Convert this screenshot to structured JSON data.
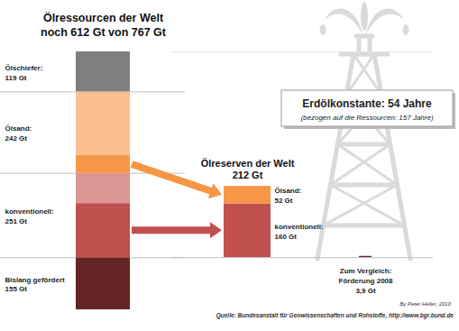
{
  "chart_data": [
    {
      "type": "bar",
      "stacked": true,
      "data_labels": true,
      "tick_labels": false,
      "title": "Ölressourcen der Welt",
      "subtitle": "noch 612 Gt von 767 Gt",
      "categories": [
        "Bislang gefördert",
        "konventionell:",
        "Ölsand:",
        "Ölschiefer:"
      ],
      "values": [
        155,
        251,
        242,
        119
      ],
      "value_labels": [
        "155 Gt",
        "251 Gt",
        "242 Gt",
        "119 Gt"
      ],
      "colors": [
        "#632523",
        "#d99694",
        "#fac090",
        "#7f7f7f"
      ],
      "ylim": [
        0,
        767
      ]
    },
    {
      "type": "bar",
      "stacked": true,
      "data_labels": true,
      "tick_labels": false,
      "title": "Ölreserven der Welt",
      "subtitle": "212 Gt",
      "categories": [
        "konventionell:",
        "Ölsand:"
      ],
      "values": [
        160,
        52
      ],
      "value_labels": [
        "160 Gt",
        "52 Gt"
      ],
      "colors": [
        "#c0504d",
        "#f79646"
      ],
      "ylim": [
        0,
        612
      ],
      "annotations": [
        "Erdölkonstante: 54 Jahre",
        "(bezogen auf die Ressourcen: 157 Jahre)"
      ]
    },
    {
      "type": "bar",
      "data_labels": true,
      "tick_labels": false,
      "title": "Zum Vergleich:",
      "categories": [
        "Förderung 2008"
      ],
      "values": [
        3.9
      ],
      "value_labels": [
        "3,9 Gt"
      ],
      "color": "#632523",
      "ylim": [
        0,
        612
      ],
      "annotations": [
        "By Peter Heller, 2010",
        "Quelle: Bundesanstalt für Geowissenschaften und Rohstoffe, http://www.bgr.bund.de"
      ]
    }
  ]
}
